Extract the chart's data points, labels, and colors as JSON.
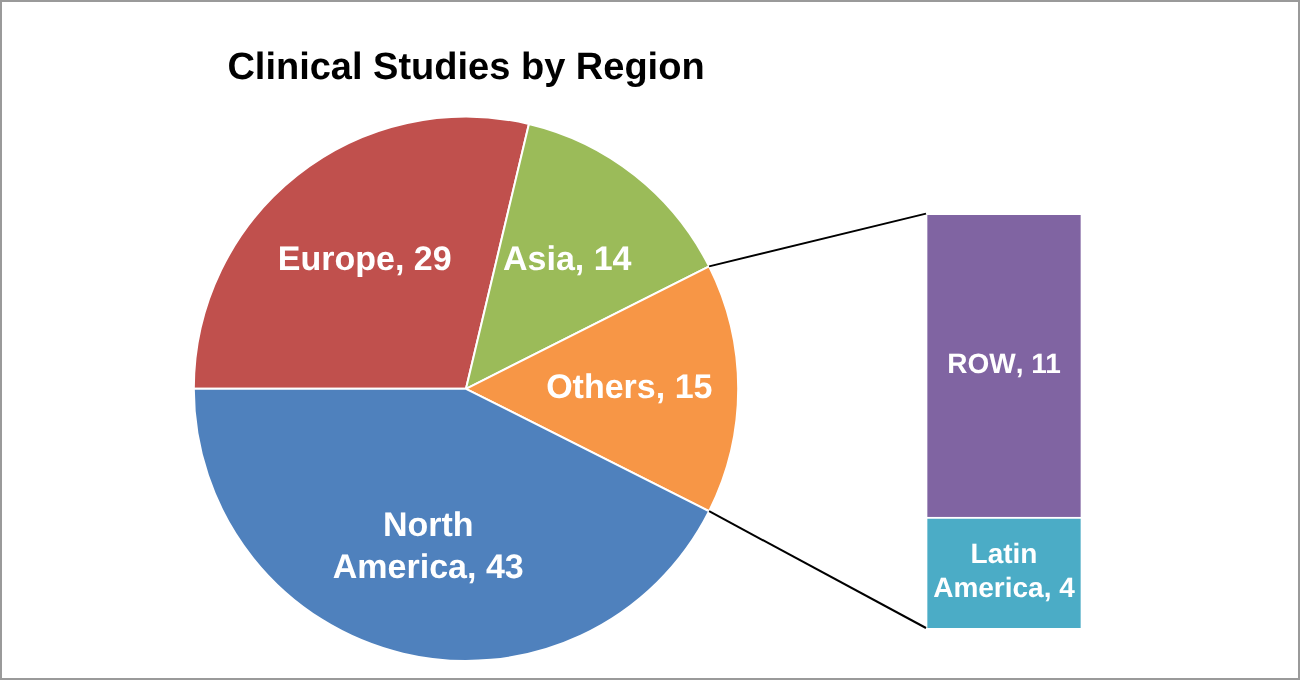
{
  "chart_data": [
    {
      "type": "pie",
      "title": "Clinical Studies by Region",
      "categories": [
        "Europe",
        "Asia",
        "Others",
        "North America"
      ],
      "values": [
        29,
        14,
        15,
        43
      ],
      "colors": [
        "#c0504d",
        "#9bbb59",
        "#f79646",
        "#4f81bd"
      ],
      "value_labels": [
        ", 29",
        ", 14",
        ", 15",
        ", 43"
      ],
      "legend": false
    },
    {
      "type": "bar",
      "stacked": true,
      "categories": [
        null
      ],
      "series": [
        {
          "name": "Latin America",
          "color": "#4bacc6",
          "values": [
            4
          ],
          "value_labels": [
            ", 4"
          ]
        },
        {
          "name": "ROW",
          "color": "#8064a2",
          "values": [
            11
          ],
          "value_labels": [
            ", 11"
          ]
        }
      ],
      "tick_labels": false,
      "legend": false
    }
  ]
}
